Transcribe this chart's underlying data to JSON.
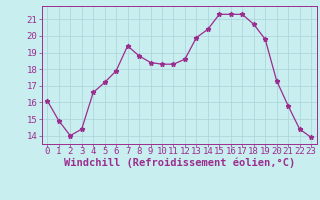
{
  "x": [
    0,
    1,
    2,
    3,
    4,
    5,
    6,
    7,
    8,
    9,
    10,
    11,
    12,
    13,
    14,
    15,
    16,
    17,
    18,
    19,
    20,
    21,
    22,
    23
  ],
  "y": [
    16.1,
    14.9,
    14.0,
    14.4,
    16.6,
    17.2,
    17.9,
    19.4,
    18.8,
    18.4,
    18.3,
    18.3,
    18.6,
    19.9,
    20.4,
    21.3,
    21.3,
    21.3,
    20.7,
    19.8,
    17.3,
    15.8,
    14.4,
    13.9
  ],
  "line_color": "#9b2d8e",
  "marker": "*",
  "bg_color": "#c8eef0",
  "grid_color": "#aad4d8",
  "xlabel": "Windchill (Refroidissement éolien,°C)",
  "xlim": [
    -0.5,
    23.5
  ],
  "ylim": [
    13.5,
    21.8
  ],
  "yticks": [
    14,
    15,
    16,
    17,
    18,
    19,
    20,
    21
  ],
  "xticks": [
    0,
    1,
    2,
    3,
    4,
    5,
    6,
    7,
    8,
    9,
    10,
    11,
    12,
    13,
    14,
    15,
    16,
    17,
    18,
    19,
    20,
    21,
    22,
    23
  ],
  "tick_color": "#9b2d8e",
  "label_color": "#9b2d8e",
  "label_fontsize": 7.5,
  "tick_fontsize": 6.5
}
